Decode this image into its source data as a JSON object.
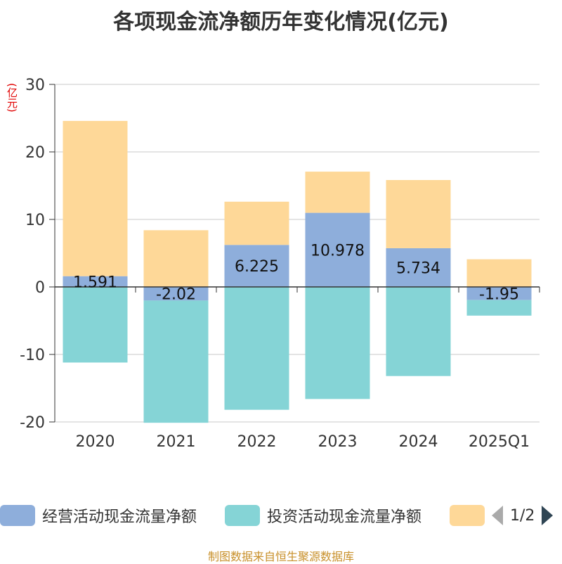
{
  "title": "各项现金流净额历年变化情况(亿元)",
  "unit_label": "(亿元)",
  "source": "制图数据来自恒生聚源数据库",
  "legend": {
    "items": [
      {
        "label": "经营活动现金流量净额",
        "color": "#8eaedb"
      },
      {
        "label": "投资活动现金流量净额",
        "color": "#85d4d6"
      },
      {
        "label": "",
        "color": "#fed898"
      }
    ],
    "pager": "1/2"
  },
  "chart_data": {
    "type": "bar",
    "stacked": true,
    "categories": [
      "2020",
      "2021",
      "2022",
      "2023",
      "2024",
      "2025Q1"
    ],
    "series": [
      {
        "name": "经营活动现金流量净额",
        "color": "#8eaedb",
        "values": [
          1.591,
          -2.02,
          6.225,
          10.978,
          5.734,
          -1.95
        ],
        "labels": true
      },
      {
        "name": "投资活动现金流量净额",
        "color": "#85d4d6",
        "values": [
          -11.2,
          -18.1,
          -18.2,
          -16.6,
          -13.2,
          -2.3
        ],
        "labels": false
      },
      {
        "name": "",
        "color": "#fed898",
        "values": [
          23.0,
          8.4,
          6.4,
          6.1,
          10.1,
          4.1
        ],
        "labels": false
      }
    ],
    "y_ticks": [
      -20,
      -10,
      0,
      10,
      20,
      30
    ],
    "ylim": [
      -20,
      30
    ],
    "grid": true
  }
}
